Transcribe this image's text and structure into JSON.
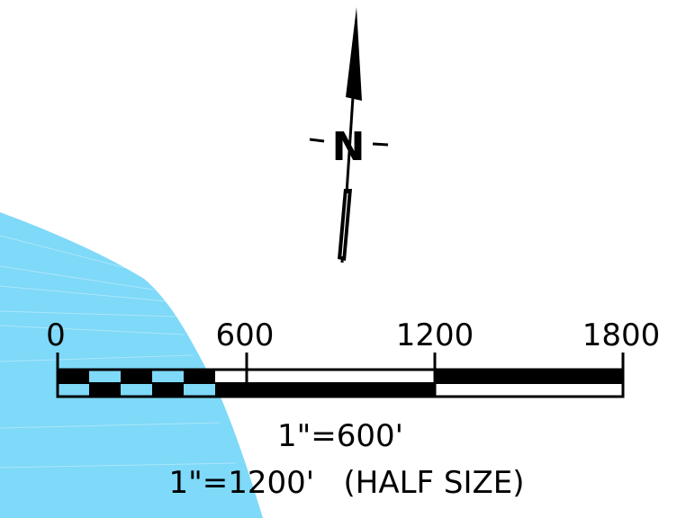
{
  "colors": {
    "water": "#7fd9f8",
    "ink": "#000000",
    "paper": "#ffffff"
  },
  "north_arrow": {
    "letter": "N",
    "icon": "north-arrow-icon"
  },
  "scale_bar": {
    "tick_labels": [
      "0",
      "600",
      "1200",
      "1800"
    ],
    "units": "feet",
    "scale_text": "1\"=600'",
    "half_size_text": "1\"=1200'   (HALF SIZE)"
  }
}
